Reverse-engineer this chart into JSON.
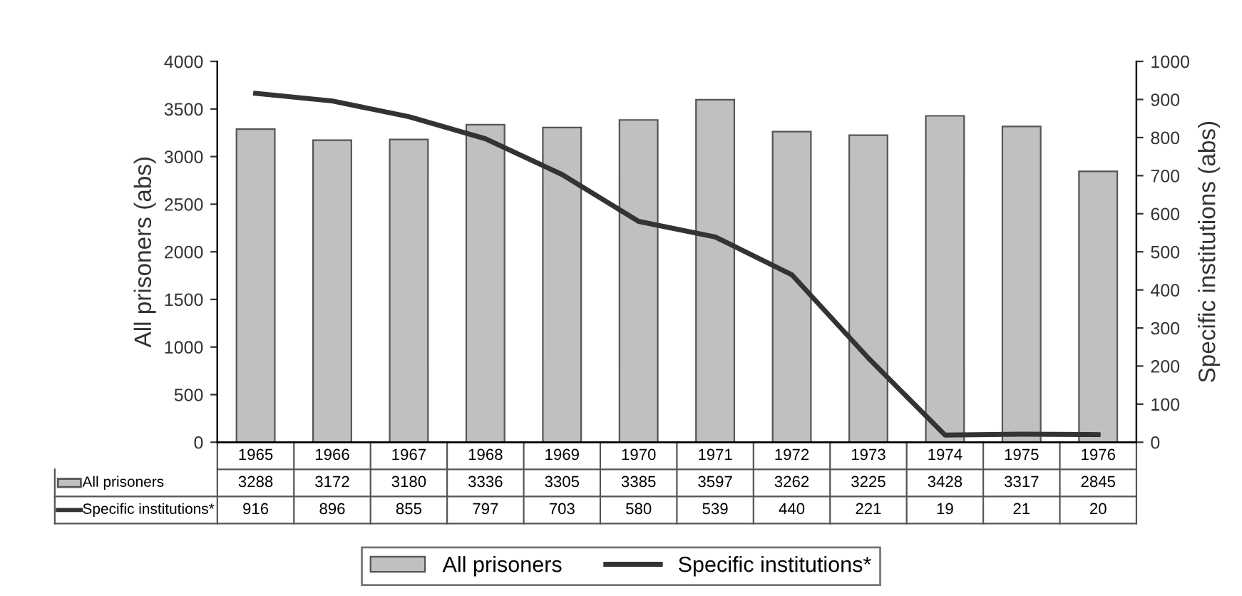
{
  "chart_data": {
    "type": "bar",
    "ylabel": "All prisoners (abs)",
    "y2label": "Specific institutions (abs)",
    "categories": [
      "1965",
      "1966",
      "1967",
      "1968",
      "1969",
      "1970",
      "1971",
      "1972",
      "1973",
      "1974",
      "1975",
      "1976"
    ],
    "series": [
      {
        "name": "All prisoners",
        "color": "#c0c0c0",
        "values": [
          3288,
          3172,
          3180,
          3336,
          3305,
          3385,
          3597,
          3262,
          3225,
          3428,
          3317,
          2845
        ]
      },
      {
        "name": "Specific institutions*",
        "type": "line",
        "axis": "y2",
        "color": "#333333",
        "values": [
          916,
          896,
          855,
          797,
          703,
          580,
          539,
          440,
          221,
          19,
          21,
          20
        ]
      }
    ],
    "ylim": [
      0,
      4000
    ],
    "yticks": [
      0,
      500,
      1000,
      1500,
      2000,
      2500,
      3000,
      3500,
      4000
    ],
    "y2lim": [
      0,
      1000
    ],
    "y2ticks": [
      0,
      100,
      200,
      300,
      400,
      500,
      600,
      700,
      800,
      900,
      1000
    ],
    "data_labels": true,
    "legend": "bottom",
    "grid": false,
    "marker": "none",
    "line_style": "solid"
  }
}
